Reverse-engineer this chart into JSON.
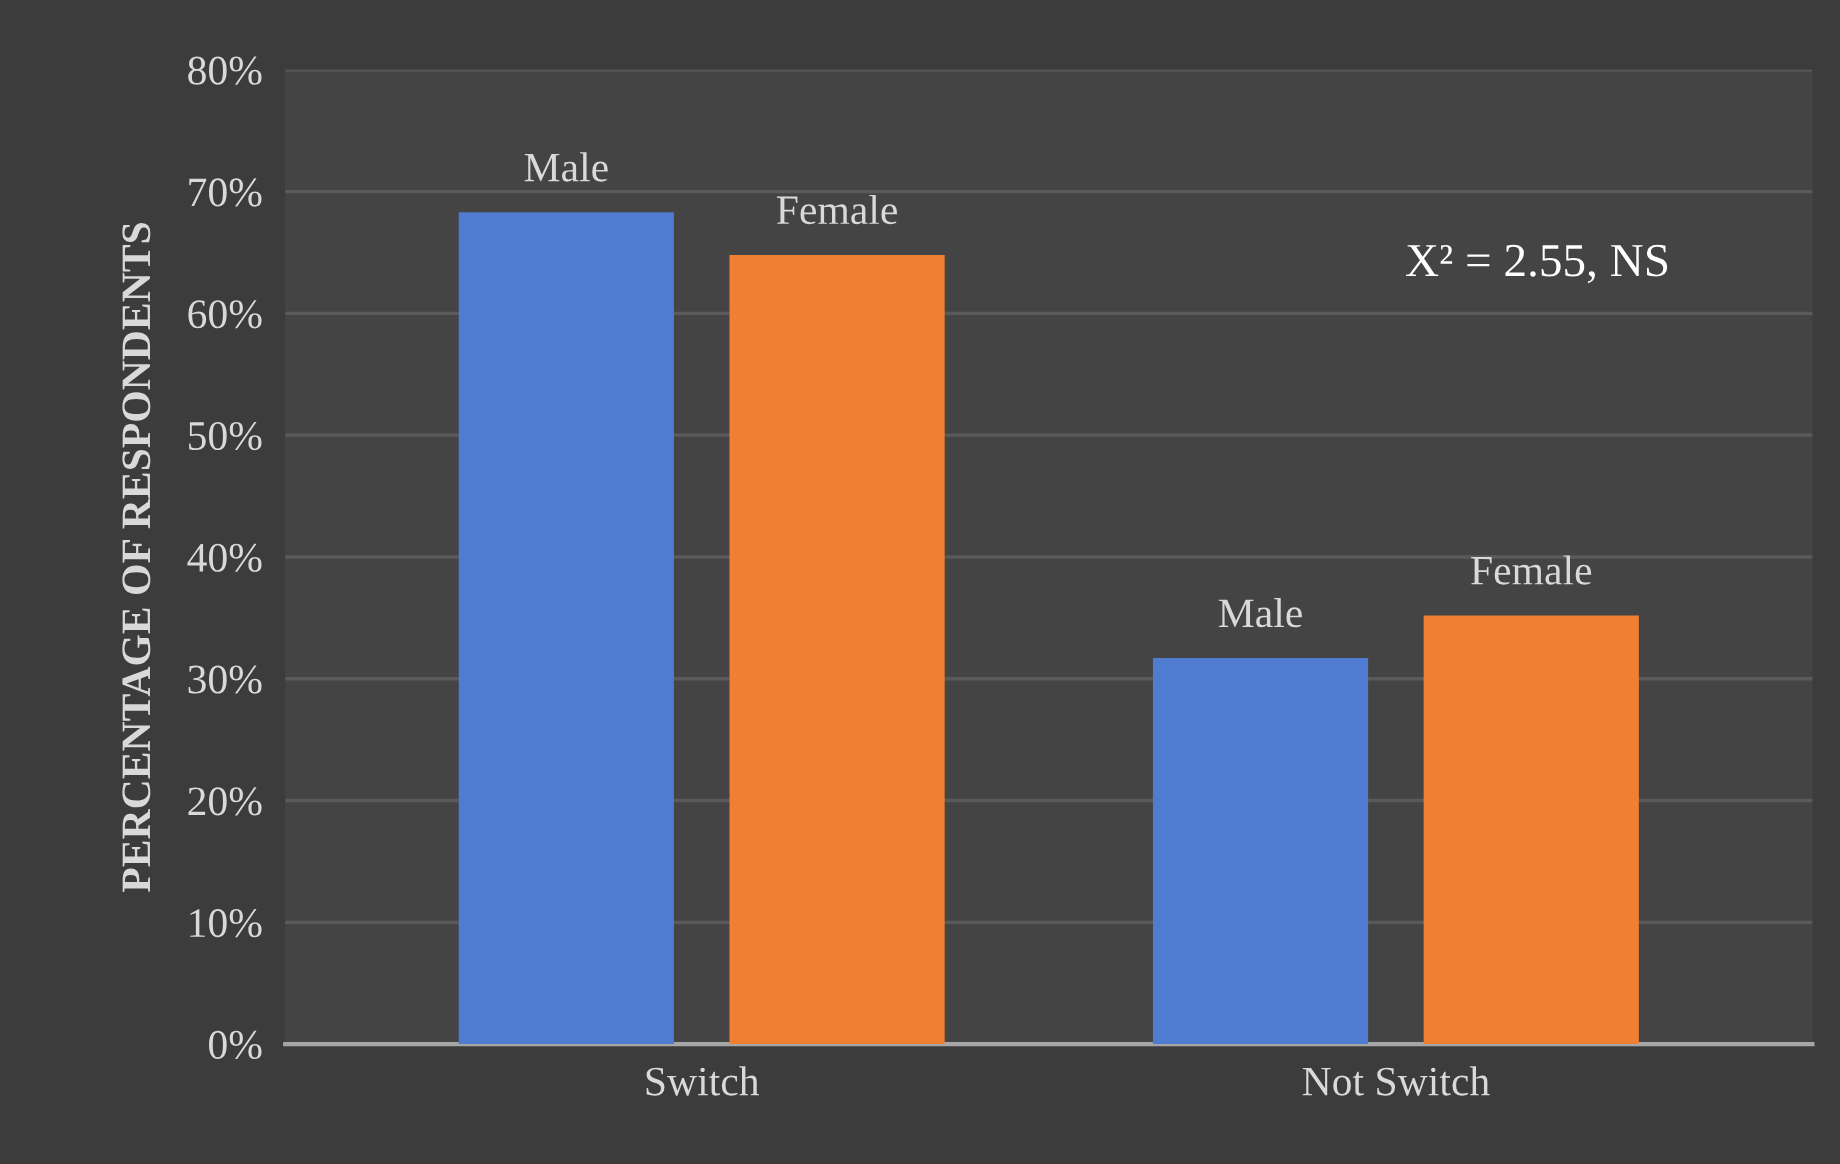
{
  "chart_data": {
    "type": "bar",
    "ylabel": "PERCENTAGE OF RESPONDENTS",
    "categories": [
      "Switch",
      "Not Switch"
    ],
    "series": [
      {
        "name": "Male",
        "color": "#4f7bd0",
        "values": [
          68.3,
          31.7
        ]
      },
      {
        "name": "Female",
        "color": "#f07f33",
        "values": [
          64.8,
          35.2
        ]
      }
    ],
    "ylim": [
      0,
      80
    ],
    "yticks": [
      {
        "value": 0,
        "label": "0%"
      },
      {
        "value": 10,
        "label": "10%"
      },
      {
        "value": 20,
        "label": "20%"
      },
      {
        "value": 30,
        "label": "30%"
      },
      {
        "value": 40,
        "label": "40%"
      },
      {
        "value": 50,
        "label": "50%"
      },
      {
        "value": 60,
        "label": "60%"
      },
      {
        "value": 70,
        "label": "70%"
      },
      {
        "value": 80,
        "label": "80%"
      }
    ],
    "grid": "y",
    "legend": false,
    "annotations": [
      "X² = 2.55, NS"
    ]
  }
}
